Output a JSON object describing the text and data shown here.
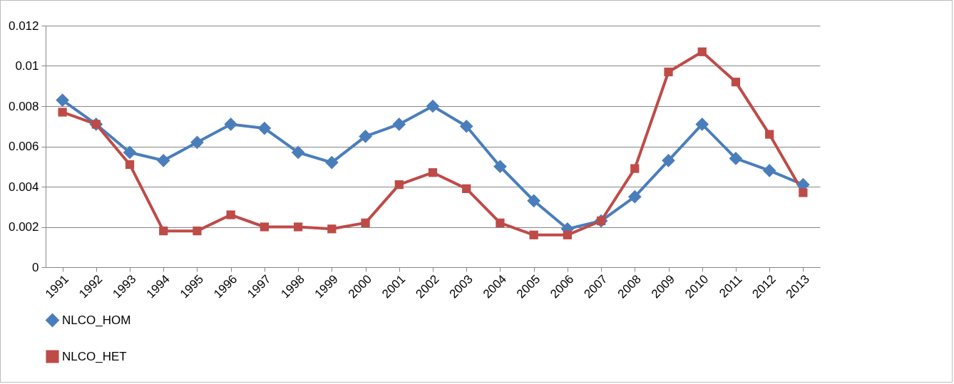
{
  "chart_data": {
    "type": "line",
    "categories": [
      "1991",
      "1992",
      "1993",
      "1994",
      "1995",
      "1996",
      "1997",
      "1998",
      "1999",
      "2000",
      "2001",
      "2002",
      "2003",
      "2004",
      "2005",
      "2006",
      "2007",
      "2008",
      "2009",
      "2010",
      "2011",
      "2012",
      "2013"
    ],
    "series": [
      {
        "name": "NLCO_HOM",
        "color": "#4a7ebb",
        "marker": "diamond",
        "values": [
          0.0083,
          0.0071,
          0.0057,
          0.0053,
          0.0062,
          0.0071,
          0.0069,
          0.0057,
          0.0052,
          0.0065,
          0.0071,
          0.008,
          0.007,
          0.005,
          0.0033,
          0.0019,
          0.0023,
          0.0035,
          0.0053,
          0.0071,
          0.0054,
          0.0048,
          0.0041
        ]
      },
      {
        "name": "NLCO_HET",
        "color": "#be4b48",
        "marker": "square",
        "values": [
          0.0077,
          0.0071,
          0.0051,
          0.0018,
          0.0018,
          0.0026,
          0.002,
          0.002,
          0.0019,
          0.0022,
          0.0041,
          0.0047,
          0.0039,
          0.0022,
          0.0016,
          0.0016,
          0.0023,
          0.0049,
          0.0097,
          0.0107,
          0.0092,
          0.0066,
          0.0037
        ]
      }
    ],
    "ylim": [
      0,
      0.012
    ],
    "yticks": [
      0,
      0.002,
      0.004,
      0.006,
      0.008,
      0.01,
      0.012
    ],
    "grid": "y",
    "legend": "bottom",
    "line_style": "solid"
  }
}
